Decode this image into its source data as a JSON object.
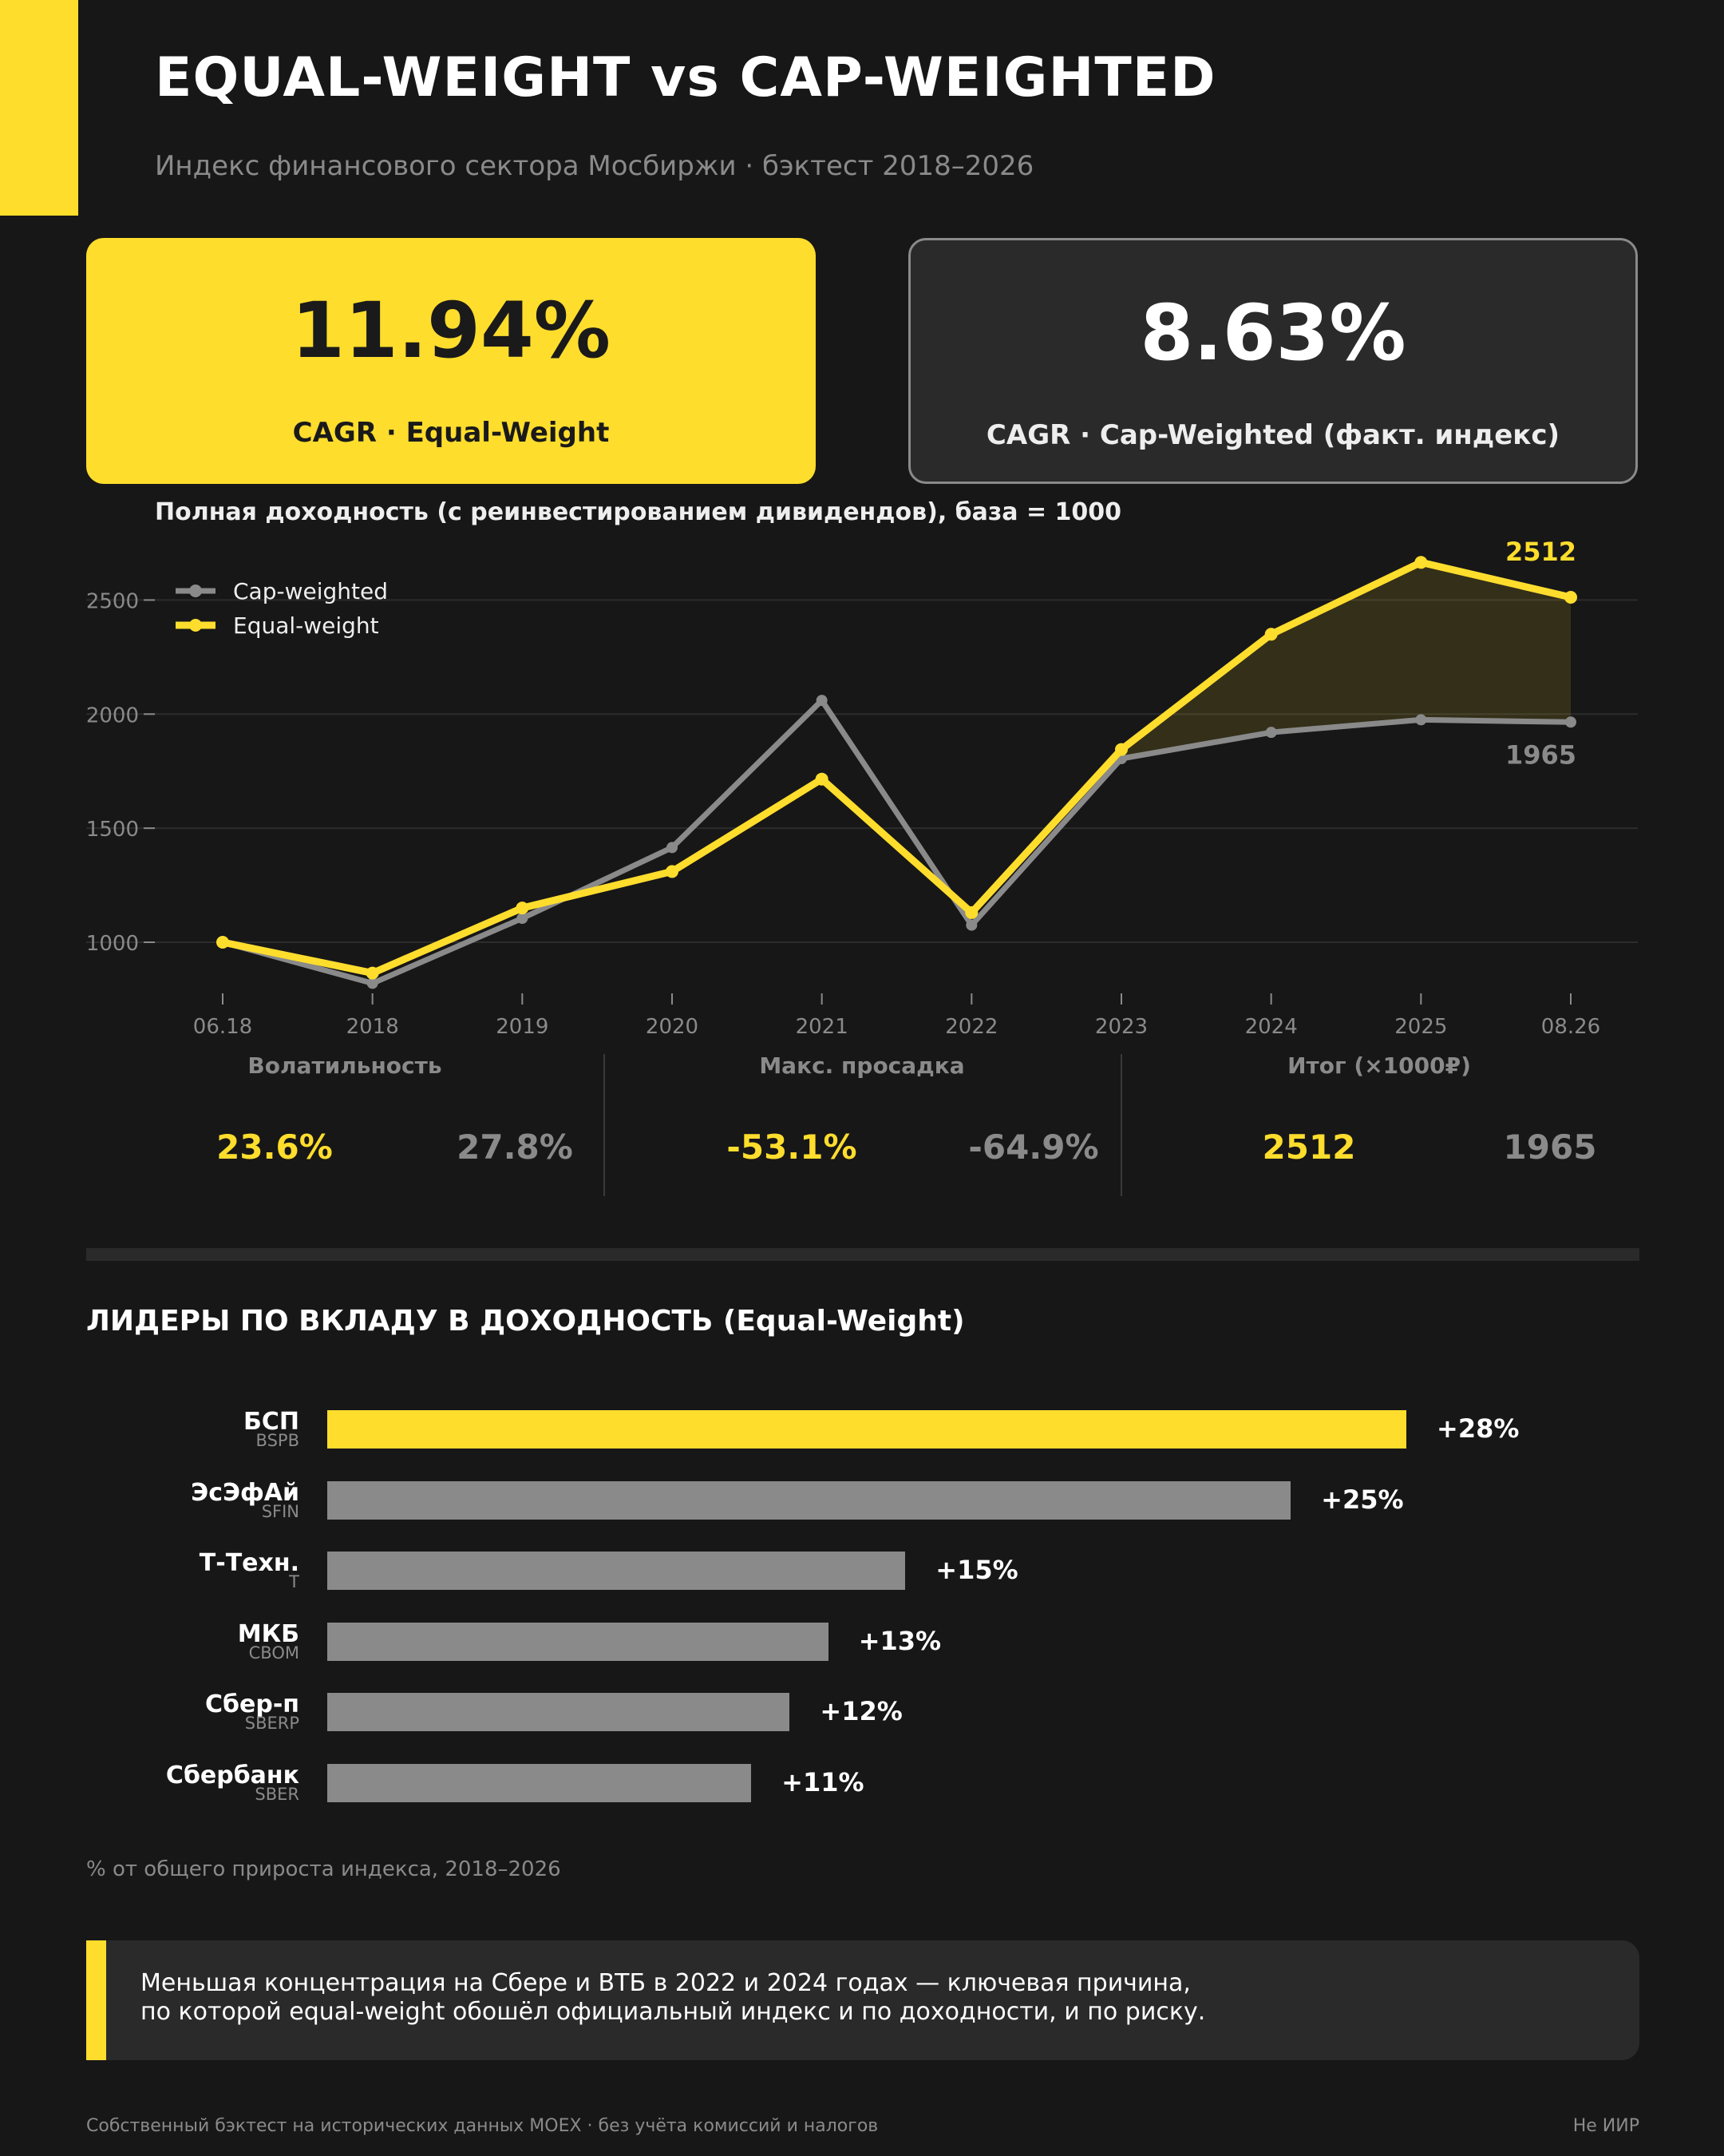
{
  "header": {
    "title": "EQUAL-WEIGHT vs CAP-WEIGHTED",
    "subtitle": "Индекс финансового сектора Мосбиржи · бэктест 2018–2026"
  },
  "kpis": {
    "ew": {
      "value": "11.94%",
      "label": "CAGR · Equal-Weight"
    },
    "cw": {
      "value": "8.63%",
      "label": "CAGR · Cap-Weighted (факт. индекс)"
    }
  },
  "colors": {
    "accent": "#ffdd2d",
    "gray": "#8a8a8a",
    "background": "#171717",
    "panel": "#2a2a2a"
  },
  "chart_data": {
    "type": "line",
    "title": "Полная доходность (с реинвестированием дивидендов), база = 1000",
    "x": [
      "06.18",
      "2018",
      "2019",
      "2020",
      "2021",
      "2022",
      "2023",
      "2024",
      "2025",
      "08.26"
    ],
    "yticks": [
      1000,
      1500,
      2000,
      2500
    ],
    "ylim": [
      720,
      2820
    ],
    "grid": true,
    "legend_position": "top-left",
    "series": [
      {
        "name": "Cap-weighted",
        "color": "#8a8a8a",
        "values": [
          1000,
          820,
          1105,
          1415,
          2060,
          1075,
          1805,
          1920,
          1975,
          1965
        ]
      },
      {
        "name": "Equal-weight",
        "color": "#ffdd2d",
        "values": [
          1000,
          865,
          1150,
          1310,
          1715,
          1130,
          1845,
          2350,
          2665,
          2512
        ]
      }
    ],
    "end_labels": {
      "ew": "2512",
      "cw": "1965"
    }
  },
  "metrics": [
    {
      "title": "Волатильность",
      "ew": "23.6%",
      "cw": "27.8%"
    },
    {
      "title": "Макс. просадка",
      "ew": "-53.1%",
      "cw": "-64.9%"
    },
    {
      "title": "Итог (×1000₽)",
      "ew": "2512",
      "cw": "1965"
    }
  ],
  "leaders": {
    "title": "ЛИДЕРЫ ПО ВКЛАДУ В ДОХОДНОСТЬ (Equal-Weight)",
    "note": "% от общего прироста индекса, 2018–2026",
    "max_value": 28,
    "items": [
      {
        "name": "БСП",
        "ticker": "BSPB",
        "value": 28,
        "label": "+28%"
      },
      {
        "name": "ЭсЭфАй",
        "ticker": "SFIN",
        "value": 25,
        "label": "+25%"
      },
      {
        "name": "Т-Техн.",
        "ticker": "T",
        "value": 15,
        "label": "+15%"
      },
      {
        "name": "МКБ",
        "ticker": "CBOM",
        "value": 13,
        "label": "+13%"
      },
      {
        "name": "Сбер-п",
        "ticker": "SBERP",
        "value": 12,
        "label": "+12%"
      },
      {
        "name": "Сбербанк",
        "ticker": "SBER",
        "value": 11,
        "label": "+11%"
      }
    ]
  },
  "callout": {
    "line1": "Меньшая концентрация на Сбере и ВТБ в 2022 и 2024 годах — ключевая причина,",
    "line2": "по которой equal-weight обошёл официальный индекс и по доходности, и по риску."
  },
  "footer": {
    "left": "Собственный бэктест на исторических данных MOEX · без учёта комиссий и налогов",
    "right": "Не ИИР"
  }
}
